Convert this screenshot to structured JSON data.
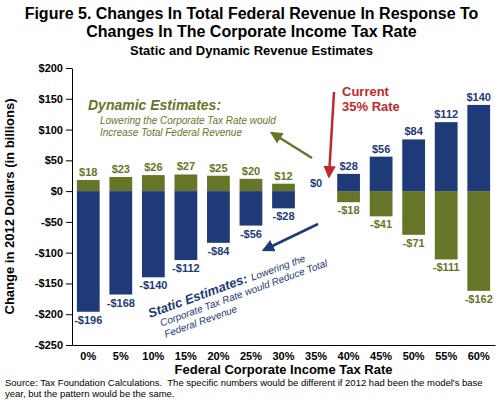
{
  "chart_data": {
    "type": "bar",
    "title": "Figure 5. Changes In Total Federal Revenue In Response To Changes In The Corporate Income Tax Rate",
    "subtitle": "Static and Dynamic Revenue Estimates",
    "x_label": "Federal Corporate Income Tax Rate",
    "y_label": "Change in 2012 Dollars (in billions)",
    "categories": [
      "0%",
      "5%",
      "10%",
      "15%",
      "20%",
      "25%",
      "30%",
      "35%",
      "40%",
      "45%",
      "50%",
      "55%",
      "60%"
    ],
    "series": [
      {
        "name": "Dynamic Estimates:",
        "color": "#667628",
        "values": [
          18,
          23,
          26,
          27,
          25,
          20,
          12,
          0,
          -18,
          -41,
          -71,
          -111,
          -162
        ],
        "value_labels": [
          "$18",
          "$23",
          "$26",
          "$27",
          "$25",
          "$20",
          "$12",
          null,
          "-$18",
          "-$41",
          "-$71",
          "-$111",
          "-$162"
        ]
      },
      {
        "name": "Static Estimates:",
        "color": "#1f3a78",
        "values": [
          -196,
          -168,
          -140,
          -112,
          -84,
          -56,
          -28,
          0,
          28,
          56,
          84,
          112,
          140
        ],
        "value_labels": [
          "-$196",
          "-$168",
          "-$140",
          "-$112",
          "-$84",
          "-$56",
          "-$28",
          "$0",
          "$28",
          "$56",
          "$84",
          "$112",
          "$140"
        ]
      }
    ],
    "annotations": [
      {
        "lines": [
          "Lowering the Corporate Tax Rate would",
          "Increase Total Federal Revenue"
        ]
      },
      {
        "lines": [
          "Lowering the",
          "Corporate Tax Rate would Reduce Total",
          "Federal Revenue"
        ]
      },
      {
        "lines": [
          "Current",
          "35% Rate"
        ],
        "color": "#c0282d"
      }
    ],
    "source": "Source: Tax Foundation Calculations.  The specific numbers would be different if 2012 had been the model's base year, but the pattern would be the same.",
    "ylim": [
      -250,
      200
    ],
    "yticks": [
      {
        "value": -250,
        "label": "-$250"
      },
      {
        "value": -200,
        "label": "-$200"
      },
      {
        "value": -150,
        "label": "-$150"
      },
      {
        "value": -100,
        "label": "-$100"
      },
      {
        "value": -50,
        "label": "-$50"
      },
      {
        "value": 0,
        "label": "$0"
      },
      {
        "value": 50,
        "label": "$50"
      },
      {
        "value": 100,
        "label": "$100"
      },
      {
        "value": 150,
        "label": "$150"
      },
      {
        "value": 200,
        "label": "$200"
      }
    ],
    "grid": false,
    "stacked": true,
    "data_labels": true
  }
}
